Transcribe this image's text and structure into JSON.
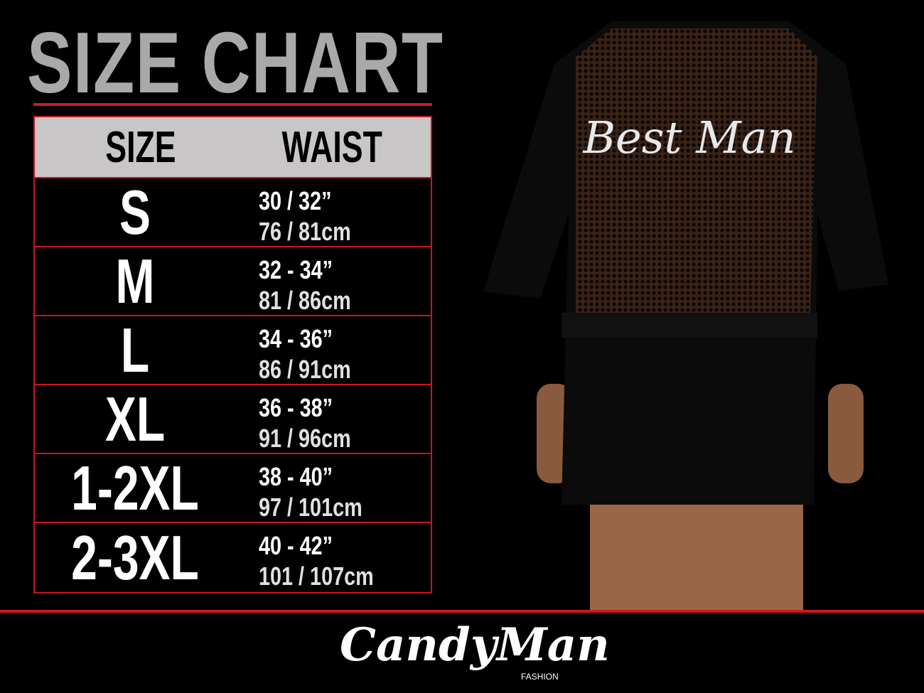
{
  "title": "SIZE CHART",
  "table": {
    "headers": [
      "SIZE",
      "WAIST"
    ],
    "rows": [
      {
        "size": "S",
        "in": "30 / 32”",
        "cm": "76 / 81cm"
      },
      {
        "size": "M",
        "in": "32 - 34”",
        "cm": "81 / 86cm"
      },
      {
        "size": "L",
        "in": "34 - 36”",
        "cm": "86 / 91cm"
      },
      {
        "size": "XL",
        "in": "36 - 38”",
        "cm": "91 / 96cm"
      },
      {
        "size": "1-2XL",
        "in": "38 - 40”",
        "cm": "97 / 101cm"
      },
      {
        "size": "2-3XL",
        "in": "40 - 42”",
        "cm": "101 / 107cm"
      }
    ]
  },
  "product_print": "Best Man",
  "brand": {
    "name": "CandyMan",
    "sub": "FASHION"
  },
  "colors": {
    "accent": "#d0191c",
    "header_bg": "#c9c6c7",
    "title": "#a9a9a9"
  }
}
